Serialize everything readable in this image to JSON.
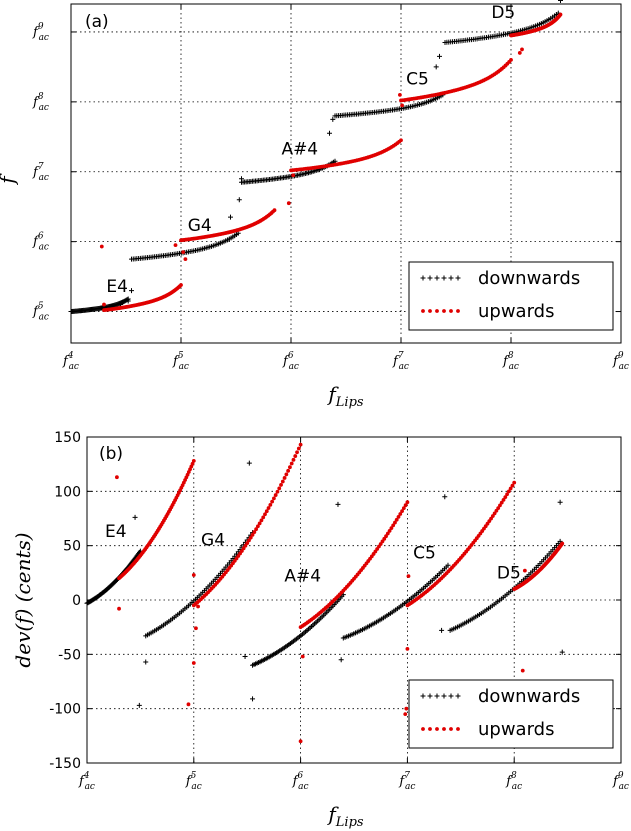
{
  "chart_data": [
    {
      "panel_label": "(a)",
      "type": "scatter",
      "x_axis": {
        "label_base": "f",
        "label_sub": "Lips",
        "tick_exponents": [
          4,
          5,
          6,
          7,
          8,
          9
        ],
        "tick_base": "f",
        "tick_sub": "ac",
        "range": [
          4,
          9
        ]
      },
      "y_axis": {
        "label": "f",
        "tick_exponents": [
          5,
          6,
          7,
          8,
          9
        ],
        "tick_base": "f",
        "tick_sub": "ac",
        "range": [
          4.55,
          9.4
        ]
      },
      "grid": true,
      "legend": {
        "placement": "bottom-right",
        "entries": [
          "downwards",
          "upwards"
        ]
      },
      "notes": [
        {
          "text": "E4",
          "x": 4.42,
          "y": 5.28
        },
        {
          "text": "G4",
          "x": 5.17,
          "y": 6.15
        },
        {
          "text": "A#4",
          "x": 6.08,
          "y": 7.25
        },
        {
          "text": "C5",
          "x": 7.15,
          "y": 8.25
        },
        {
          "text": "D5",
          "x": 7.93,
          "y": 9.2
        }
      ],
      "series": [
        {
          "name": "downwards",
          "color": "#000000",
          "marker": "+",
          "segments": [
            {
              "x0": 4.0,
              "x1": 4.52,
              "y0": 5.0,
              "y1": 5.18
            },
            {
              "x0": 4.55,
              "x1": 5.52,
              "y0": 5.75,
              "y1": 6.12
            },
            {
              "x0": 5.55,
              "x1": 6.4,
              "y0": 6.85,
              "y1": 7.15
            },
            {
              "x0": 6.4,
              "x1": 7.38,
              "y0": 7.8,
              "y1": 8.1
            },
            {
              "x0": 7.4,
              "x1": 8.43,
              "y0": 8.85,
              "y1": 9.27
            }
          ],
          "outliers": [
            [
              4.45,
              5.1
            ],
            [
              4.52,
              5.15
            ],
            [
              4.55,
              5.3
            ],
            [
              5.45,
              6.35
            ],
            [
              5.53,
              6.6
            ],
            [
              5.55,
              6.9
            ],
            [
              6.35,
              7.55
            ],
            [
              6.38,
              7.75
            ],
            [
              7.32,
              8.5
            ],
            [
              7.35,
              8.65
            ],
            [
              8.45,
              9.45
            ]
          ]
        },
        {
          "name": "upwards",
          "color": "#e00000",
          "marker": ".",
          "segments": [
            {
              "x0": 4.3,
              "x1": 5.0,
              "y0": 5.02,
              "y1": 5.38
            },
            {
              "x0": 5.0,
              "x1": 5.85,
              "y0": 6.02,
              "y1": 6.45
            },
            {
              "x0": 6.0,
              "x1": 7.0,
              "y0": 7.02,
              "y1": 7.45
            },
            {
              "x0": 7.0,
              "x1": 8.0,
              "y0": 8.02,
              "y1": 8.6
            },
            {
              "x0": 8.0,
              "x1": 8.45,
              "y0": 8.95,
              "y1": 9.25
            }
          ],
          "outliers": [
            [
              4.28,
              5.93
            ],
            [
              4.3,
              5.1
            ],
            [
              4.95,
              5.95
            ],
            [
              5.02,
              5.85
            ],
            [
              5.04,
              5.75
            ],
            [
              5.98,
              6.55
            ],
            [
              6.02,
              6.95
            ],
            [
              6.99,
              8.1
            ],
            [
              7.01,
              7.95
            ],
            [
              8.08,
              8.7
            ],
            [
              8.1,
              8.75
            ]
          ]
        }
      ]
    },
    {
      "panel_label": "(b)",
      "type": "scatter",
      "x_axis": {
        "label_base": "f",
        "label_sub": "Lips",
        "tick_exponents": [
          4,
          5,
          6,
          7,
          8,
          9
        ],
        "tick_base": "f",
        "tick_sub": "ac",
        "range": [
          4,
          9
        ]
      },
      "y_axis": {
        "label": "dev(f) (cents)",
        "ticks": [
          -150,
          -100,
          -50,
          0,
          50,
          100,
          150
        ],
        "range": [
          -150,
          150
        ]
      },
      "grid": true,
      "legend": {
        "placement": "bottom-right",
        "entries": [
          "downwards",
          "upwards"
        ]
      },
      "notes": [
        {
          "text": "E4",
          "x": 4.27,
          "y": 58
        },
        {
          "text": "G4",
          "x": 5.18,
          "y": 50
        },
        {
          "text": "A#4",
          "x": 6.02,
          "y": 17
        },
        {
          "text": "C5",
          "x": 7.16,
          "y": 38
        },
        {
          "text": "D5",
          "x": 7.95,
          "y": 20
        }
      ],
      "series": [
        {
          "name": "downwards",
          "color": "#000000",
          "marker": "+",
          "segments": [
            {
              "x0": 4.0,
              "x1": 4.5,
              "y0": -3,
              "y1": 45
            },
            {
              "x0": 4.55,
              "x1": 5.55,
              "y0": -33,
              "y1": 62
            },
            {
              "x0": 5.55,
              "x1": 6.4,
              "y0": -60,
              "y1": 5
            },
            {
              "x0": 6.4,
              "x1": 7.38,
              "y0": -35,
              "y1": 32
            },
            {
              "x0": 7.4,
              "x1": 8.43,
              "y0": -28,
              "y1": 54
            }
          ],
          "outliers": [
            [
              4.45,
              76
            ],
            [
              4.49,
              -97
            ],
            [
              4.55,
              -57
            ],
            [
              5.48,
              -52
            ],
            [
              5.52,
              126
            ],
            [
              5.55,
              -91
            ],
            [
              6.35,
              88
            ],
            [
              6.38,
              -55
            ],
            [
              7.32,
              -28
            ],
            [
              7.35,
              95
            ],
            [
              8.43,
              90
            ],
            [
              8.45,
              -48
            ]
          ]
        },
        {
          "name": "upwards",
          "color": "#e00000",
          "marker": ".",
          "segments": [
            {
              "x0": 4.3,
              "x1": 5.0,
              "y0": 20,
              "y1": 128
            },
            {
              "x0": 5.0,
              "x1": 6.0,
              "y0": -5,
              "y1": 143
            },
            {
              "x0": 6.0,
              "x1": 7.0,
              "y0": -25,
              "y1": 90
            },
            {
              "x0": 7.0,
              "x1": 8.0,
              "y0": -5,
              "y1": 108
            },
            {
              "x0": 8.0,
              "x1": 8.45,
              "y0": 10,
              "y1": 52
            }
          ],
          "outliers": [
            [
              4.28,
              113
            ],
            [
              4.3,
              -8
            ],
            [
              4.95,
              -96
            ],
            [
              5.0,
              -58
            ],
            [
              5.02,
              -26
            ],
            [
              5.0,
              23
            ],
            [
              5.04,
              -6
            ],
            [
              6.0,
              -130
            ],
            [
              6.02,
              -52
            ],
            [
              6.99,
              -100
            ],
            [
              7.0,
              -45
            ],
            [
              7.01,
              22
            ],
            [
              6.98,
              -105
            ],
            [
              8.08,
              -65
            ],
            [
              8.09,
              -75
            ],
            [
              8.1,
              27
            ]
          ]
        }
      ]
    }
  ]
}
